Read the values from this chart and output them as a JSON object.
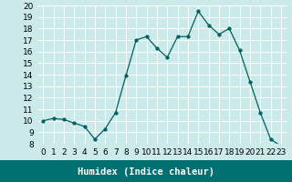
{
  "x": [
    0,
    1,
    2,
    3,
    4,
    5,
    6,
    7,
    8,
    9,
    10,
    11,
    12,
    13,
    14,
    15,
    16,
    17,
    18,
    19,
    20,
    21,
    22,
    23
  ],
  "y": [
    10,
    10.2,
    10.1,
    9.8,
    9.5,
    8.4,
    9.3,
    10.7,
    13.9,
    17.0,
    17.3,
    16.3,
    15.5,
    17.3,
    17.3,
    19.5,
    18.3,
    17.5,
    18.0,
    16.1,
    13.4,
    10.7,
    8.4,
    7.8
  ],
  "line_color": "#006060",
  "marker": "o",
  "marker_size": 2.5,
  "bg_color": "#cceaea",
  "grid_color": "#ffffff",
  "xlabel": "Humidex (Indice chaleur)",
  "xlim": [
    -0.5,
    23.5
  ],
  "ylim": [
    8,
    20
  ],
  "yticks": [
    8,
    9,
    10,
    11,
    12,
    13,
    14,
    15,
    16,
    17,
    18,
    19,
    20
  ],
  "xticks": [
    0,
    1,
    2,
    3,
    4,
    5,
    6,
    7,
    8,
    9,
    10,
    11,
    12,
    13,
    14,
    15,
    16,
    17,
    18,
    19,
    20,
    21,
    22,
    23
  ],
  "xlabel_fontsize": 7.5,
  "tick_fontsize": 6.5,
  "bottom_bar_color": "#007070",
  "bottom_bar_height": 0.12
}
